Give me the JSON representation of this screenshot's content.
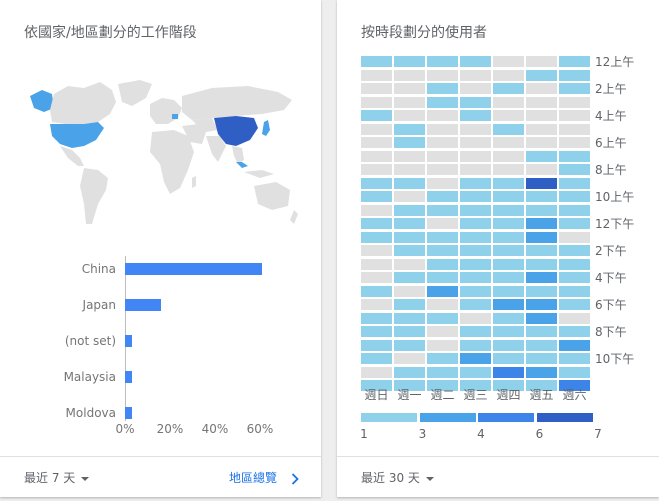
{
  "colors": {
    "level0": "#e0e0e0",
    "level1": "#8fd0eb",
    "level2": "#4aa3e8",
    "level3": "#3d84e8",
    "level4": "#2f5fc4",
    "bar": "#4285f4",
    "link": "#1a73e8"
  },
  "left_card": {
    "title": "依國家/地區劃分的工作階段",
    "footer_range": "最近 7 天",
    "footer_link": "地區總覽"
  },
  "right_card": {
    "title": "按時段劃分的使用者",
    "footer_range": "最近 30 天"
  },
  "map": {
    "highlighted": [
      {
        "country": "China",
        "level": 4
      },
      {
        "country": "United States",
        "level": 2
      },
      {
        "country": "Japan",
        "level": 2
      },
      {
        "country": "Malaysia",
        "level": 2
      },
      {
        "country": "Moldova",
        "level": 2
      }
    ]
  },
  "chart_data": [
    {
      "type": "bar",
      "orientation": "horizontal",
      "title": "依國家/地區劃分的工作階段",
      "categories": [
        "China",
        "Japan",
        "(not set)",
        "Malaysia",
        "Moldova"
      ],
      "values": [
        61,
        16,
        3,
        3,
        3
      ],
      "unit": "%",
      "xlim": [
        0,
        70
      ],
      "x_ticks": [
        "0%",
        "20%",
        "40%",
        "60%"
      ],
      "x_tick_values": [
        0,
        20,
        40,
        60
      ]
    },
    {
      "type": "heatmap",
      "title": "按時段劃分的使用者",
      "days": [
        "週日",
        "週一",
        "週二",
        "週三",
        "週四",
        "週五",
        "週六"
      ],
      "hour_labels": [
        "12上午",
        "2上午",
        "4上午",
        "6上午",
        "8上午",
        "10上午",
        "12下午",
        "2下午",
        "4下午",
        "6下午",
        "8下午",
        "10下午"
      ],
      "rows": [
        [
          1,
          1,
          1,
          1,
          0,
          0,
          1
        ],
        [
          0,
          0,
          0,
          0,
          0,
          1,
          1
        ],
        [
          0,
          0,
          1,
          0,
          1,
          0,
          1
        ],
        [
          0,
          0,
          1,
          1,
          0,
          0,
          0
        ],
        [
          1,
          0,
          0,
          1,
          0,
          0,
          0
        ],
        [
          0,
          1,
          0,
          0,
          1,
          0,
          0
        ],
        [
          0,
          1,
          0,
          0,
          0,
          0,
          0
        ],
        [
          0,
          0,
          0,
          0,
          0,
          1,
          1
        ],
        [
          0,
          0,
          0,
          0,
          0,
          0,
          1
        ],
        [
          1,
          1,
          0,
          1,
          1,
          4,
          1
        ],
        [
          1,
          0,
          1,
          1,
          1,
          1,
          1
        ],
        [
          0,
          1,
          1,
          1,
          1,
          1,
          1
        ],
        [
          1,
          1,
          0,
          1,
          1,
          2,
          1
        ],
        [
          1,
          1,
          1,
          1,
          1,
          2,
          0
        ],
        [
          0,
          1,
          1,
          1,
          1,
          1,
          1
        ],
        [
          0,
          0,
          1,
          1,
          1,
          1,
          1
        ],
        [
          0,
          1,
          1,
          1,
          1,
          2,
          1
        ],
        [
          1,
          0,
          2,
          1,
          1,
          1,
          1
        ],
        [
          0,
          1,
          0,
          1,
          2,
          2,
          1
        ],
        [
          1,
          1,
          1,
          0,
          1,
          2,
          0
        ],
        [
          1,
          1,
          0,
          1,
          1,
          1,
          1
        ],
        [
          1,
          1,
          0,
          1,
          1,
          1,
          2
        ],
        [
          1,
          0,
          1,
          2,
          1,
          1,
          1
        ],
        [
          0,
          1,
          1,
          1,
          3,
          2,
          1
        ],
        [
          1,
          1,
          1,
          1,
          1,
          1,
          3
        ]
      ],
      "legend": {
        "values": [
          "1",
          "3",
          "4",
          "6",
          "7"
        ],
        "levels": [
          1,
          2,
          3,
          4
        ]
      }
    }
  ]
}
